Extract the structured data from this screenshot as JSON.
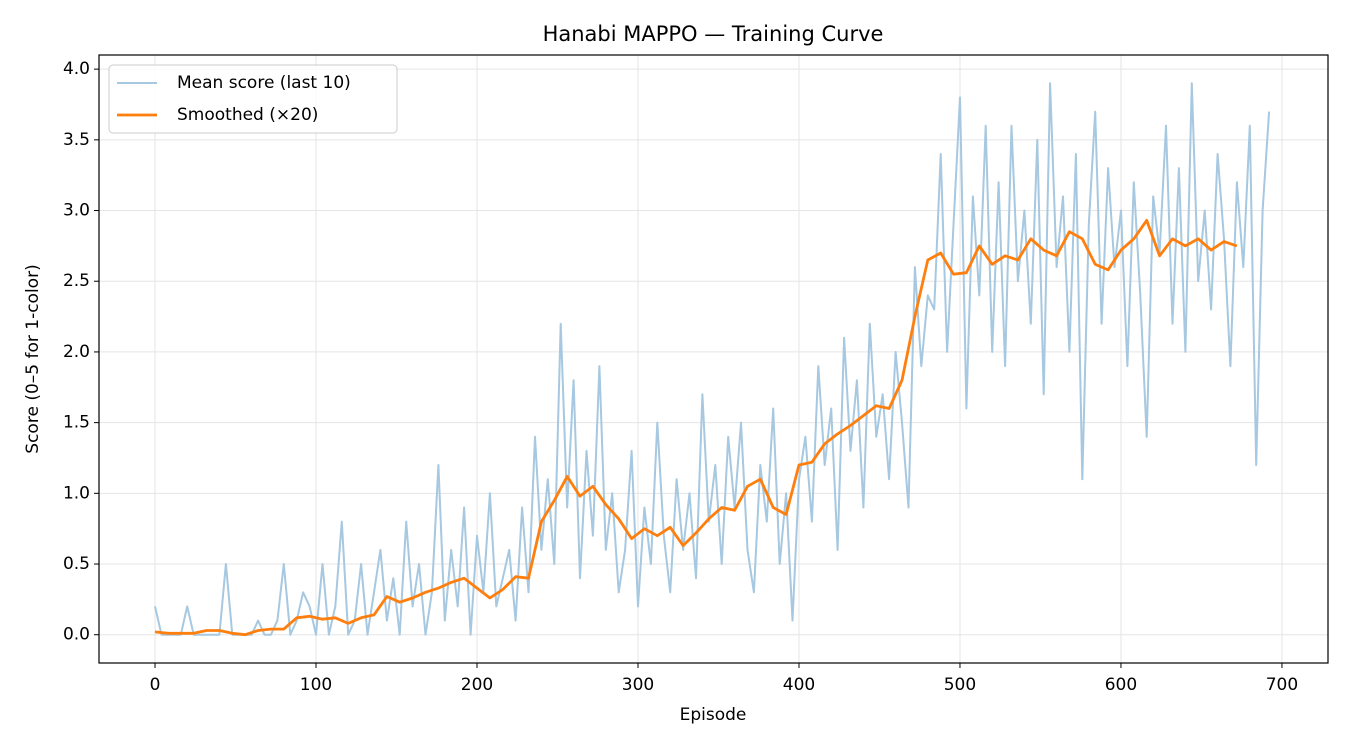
{
  "chart_data": {
    "type": "line",
    "title": "Hanabi MAPPO — Training Curve",
    "xlabel": "Episode",
    "ylabel": "Score (0–5 for 1-color)",
    "xlim": [
      -34.8,
      728.6
    ],
    "ylim": [
      -0.2,
      4.1
    ],
    "xticks": [
      0,
      100,
      200,
      300,
      400,
      500,
      600,
      700
    ],
    "yticks": [
      {
        "value": 0,
        "label": "0.0"
      },
      0.5,
      {
        "value": 1,
        "label": "1.0"
      },
      1.5,
      {
        "value": 2,
        "label": "2.0"
      },
      2.5,
      {
        "value": 3,
        "label": "3.0"
      },
      3.5,
      {
        "value": 4,
        "label": "4.0"
      }
    ],
    "grid": true,
    "legend": "upper left",
    "series": [
      {
        "name": "Mean score (last 10)",
        "color": "#a6c8e0",
        "width": 2,
        "x": [
          0,
          4,
          8,
          12,
          16,
          20,
          24,
          28,
          32,
          36,
          40,
          44,
          48,
          52,
          56,
          60,
          64,
          68,
          72,
          76,
          80,
          84,
          88,
          92,
          96,
          100,
          104,
          108,
          112,
          116,
          120,
          124,
          128,
          132,
          136,
          140,
          144,
          148,
          152,
          156,
          160,
          164,
          168,
          172,
          176,
          180,
          184,
          188,
          192,
          196,
          200,
          204,
          208,
          212,
          216,
          220,
          224,
          228,
          232,
          236,
          240,
          244,
          248,
          252,
          256,
          260,
          264,
          268,
          272,
          276,
          280,
          284,
          288,
          292,
          296,
          300,
          304,
          308,
          312,
          316,
          320,
          324,
          328,
          332,
          336,
          340,
          344,
          348,
          352,
          356,
          360,
          364,
          368,
          372,
          376,
          380,
          384,
          388,
          392,
          396,
          400,
          404,
          408,
          412,
          416,
          420,
          424,
          428,
          432,
          436,
          440,
          444,
          448,
          452,
          456,
          460,
          464,
          468,
          472,
          476,
          480,
          484,
          488,
          492,
          496,
          500,
          504,
          508,
          512,
          516,
          520,
          524,
          528,
          532,
          536,
          540,
          544,
          548,
          552,
          556,
          560,
          564,
          568,
          572,
          576,
          580,
          584,
          588,
          592,
          596,
          600,
          604,
          608,
          612,
          616,
          620,
          624,
          628,
          632,
          636,
          640,
          644,
          648,
          652,
          656,
          660,
          664,
          668,
          672,
          676,
          680,
          684,
          688,
          692
        ],
        "values": [
          0.2,
          0,
          0,
          0,
          0,
          0.2,
          0,
          0,
          0,
          0,
          0,
          0.5,
          0,
          0,
          0,
          0,
          0.1,
          0,
          0,
          0.1,
          0.5,
          0,
          0.1,
          0.3,
          0.2,
          0,
          0.5,
          0,
          0.2,
          0.8,
          0,
          0.1,
          0.5,
          0,
          0.3,
          0.6,
          0.1,
          0.4,
          0,
          0.8,
          0.2,
          0.5,
          0,
          0.3,
          1.2,
          0.1,
          0.6,
          0.2,
          0.9,
          0,
          0.7,
          0.3,
          1.0,
          0.2,
          0.4,
          0.6,
          0.1,
          0.9,
          0.3,
          1.4,
          0.6,
          1.1,
          0.5,
          2.2,
          0.9,
          1.8,
          0.4,
          1.3,
          0.7,
          1.9,
          0.6,
          1.0,
          0.3,
          0.6,
          1.3,
          0.2,
          0.9,
          0.5,
          1.5,
          0.7,
          0.3,
          1.1,
          0.6,
          1.0,
          0.4,
          1.7,
          0.8,
          1.2,
          0.5,
          1.4,
          0.9,
          1.5,
          0.6,
          0.3,
          1.2,
          0.8,
          1.6,
          0.5,
          1.0,
          0.1,
          1.1,
          1.4,
          0.8,
          1.9,
          1.2,
          1.6,
          0.6,
          2.1,
          1.3,
          1.8,
          0.9,
          2.2,
          1.4,
          1.7,
          1.1,
          2.0,
          1.5,
          0.9,
          2.6,
          1.9,
          2.4,
          2.3,
          3.4,
          2.0,
          2.9,
          3.8,
          1.6,
          3.1,
          2.4,
          3.6,
          2.0,
          3.2,
          1.9,
          3.6,
          2.5,
          3.0,
          2.2,
          3.5,
          1.7,
          3.9,
          2.6,
          3.1,
          2.0,
          3.4,
          1.1,
          2.9,
          3.7,
          2.2,
          3.3,
          2.6,
          3.0,
          1.9,
          3.2,
          2.4,
          1.4,
          3.1,
          2.7,
          3.6,
          2.2,
          3.3,
          2.0,
          3.9,
          2.5,
          3.0,
          2.3,
          3.4,
          2.8,
          1.9,
          3.2,
          2.6,
          3.6,
          1.2,
          3.0,
          3.7
        ]
      },
      {
        "name": "Smoothed (×20)",
        "color": "#ff7f0e",
        "width": 2.8,
        "x": [
          0,
          8,
          16,
          24,
          32,
          40,
          48,
          56,
          64,
          72,
          80,
          88,
          96,
          104,
          112,
          120,
          128,
          136,
          144,
          152,
          160,
          168,
          176,
          184,
          192,
          200,
          208,
          216,
          224,
          232,
          240,
          248,
          256,
          264,
          272,
          280,
          288,
          296,
          304,
          312,
          320,
          328,
          336,
          344,
          352,
          360,
          368,
          376,
          384,
          392,
          400,
          408,
          416,
          424,
          432,
          440,
          448,
          456,
          464,
          472,
          480,
          488,
          496,
          504,
          512,
          520,
          528,
          536,
          544,
          552,
          560,
          568,
          576,
          584,
          592,
          600,
          608,
          616,
          624,
          632,
          640,
          648,
          656,
          664,
          672
        ],
        "values": [
          0.02,
          0.01,
          0.01,
          0.01,
          0.03,
          0.03,
          0.01,
          0,
          0.03,
          0.04,
          0.04,
          0.12,
          0.13,
          0.11,
          0.12,
          0.08,
          0.12,
          0.14,
          0.27,
          0.23,
          0.26,
          0.3,
          0.33,
          0.37,
          0.4,
          0.33,
          0.26,
          0.32,
          0.41,
          0.4,
          0.8,
          0.95,
          1.12,
          0.98,
          1.05,
          0.92,
          0.82,
          0.68,
          0.75,
          0.7,
          0.76,
          0.63,
          0.72,
          0.82,
          0.9,
          0.88,
          1.05,
          1.1,
          0.9,
          0.85,
          1.2,
          1.22,
          1.35,
          1.42,
          1.48,
          1.55,
          1.62,
          1.6,
          1.8,
          2.25,
          2.65,
          2.7,
          2.55,
          2.56,
          2.75,
          2.62,
          2.68,
          2.65,
          2.8,
          2.72,
          2.68,
          2.85,
          2.8,
          2.62,
          2.58,
          2.72,
          2.8,
          2.93,
          2.68,
          2.8,
          2.75,
          2.8,
          2.72,
          2.78,
          2.75
        ]
      }
    ]
  }
}
